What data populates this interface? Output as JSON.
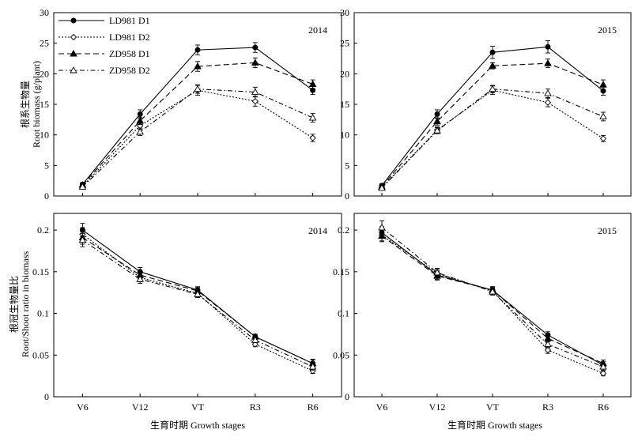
{
  "figure": {
    "x_title": "生育时期 Growth stages",
    "y_title_top_cn": "根系生物量",
    "y_title_top_en": "Root biomass (g/plant)",
    "y_title_bottom_cn": "根冠生物量比",
    "y_title_bottom_en": "Root/Shoot ratio in biomass"
  },
  "legend": [
    {
      "name": "LD981 D1",
      "marker": "filled-circle",
      "dash": "solid"
    },
    {
      "name": "LD981 D2",
      "marker": "open-diamond",
      "dash": "dotted"
    },
    {
      "name": "ZD958 D1",
      "marker": "filled-triangle",
      "dash": "dashed"
    },
    {
      "name": "ZD958 D2",
      "marker": "open-triangle",
      "dash": "dash-dot"
    }
  ],
  "chart_data": [
    {
      "type": "line",
      "year": "2014",
      "categories": [
        "V6",
        "V12",
        "VT",
        "R3",
        "R6"
      ],
      "ylim": [
        0,
        30
      ],
      "yticks": [
        "0",
        "5",
        "10",
        "15",
        "20",
        "25",
        "30"
      ],
      "ytick_values": [
        0,
        5,
        10,
        15,
        20,
        25,
        30
      ],
      "series": [
        {
          "name": "LD981 D1",
          "values": [
            1.9,
            13.4,
            23.9,
            24.3,
            17.3
          ],
          "errors": [
            0.3,
            0.7,
            0.8,
            0.8,
            0.7
          ]
        },
        {
          "name": "LD981 D2",
          "values": [
            1.6,
            11.5,
            17.3,
            15.5,
            9.5
          ],
          "errors": [
            0.3,
            0.6,
            0.8,
            0.8,
            0.6
          ]
        },
        {
          "name": "ZD958 D1",
          "values": [
            1.8,
            12.3,
            21.2,
            21.8,
            18.3
          ],
          "errors": [
            0.3,
            0.6,
            0.8,
            0.8,
            0.7
          ]
        },
        {
          "name": "ZD958 D2",
          "values": [
            1.5,
            10.5,
            17.5,
            17.0,
            12.8
          ],
          "errors": [
            0.3,
            0.6,
            0.7,
            0.8,
            0.7
          ]
        }
      ]
    },
    {
      "type": "line",
      "year": "2015",
      "categories": [
        "V6",
        "V12",
        "VT",
        "R3",
        "R6"
      ],
      "ylim": [
        0,
        30
      ],
      "yticks": [
        "0",
        "5",
        "10",
        "15",
        "20",
        "25",
        "30"
      ],
      "ytick_values": [
        0,
        5,
        10,
        15,
        20,
        25,
        30
      ],
      "series": [
        {
          "name": "LD981 D1",
          "values": [
            1.7,
            13.4,
            23.5,
            24.4,
            17.2
          ],
          "errors": [
            0.3,
            0.7,
            1.0,
            1.0,
            0.7
          ]
        },
        {
          "name": "LD981 D2",
          "values": [
            1.4,
            10.8,
            17.3,
            15.3,
            9.4
          ],
          "errors": [
            0.3,
            0.5,
            0.7,
            0.7,
            0.5
          ]
        },
        {
          "name": "ZD958 D1",
          "values": [
            1.5,
            12.2,
            21.3,
            21.7,
            18.2
          ],
          "errors": [
            0.3,
            0.6,
            0.5,
            0.7,
            0.8
          ]
        },
        {
          "name": "ZD958 D2",
          "values": [
            1.3,
            10.7,
            17.5,
            16.8,
            13.0
          ],
          "errors": [
            0.3,
            0.5,
            0.6,
            0.7,
            0.7
          ]
        }
      ]
    },
    {
      "type": "line",
      "year": "2014",
      "categories": [
        "V6",
        "V12",
        "VT",
        "R3",
        "R6"
      ],
      "ylim": [
        0,
        0.22
      ],
      "yticks": [
        "0",
        "0.05",
        "0.1",
        "0.15",
        "0.2"
      ],
      "ytick_values": [
        0,
        0.05,
        0.1,
        0.15,
        0.2
      ],
      "series": [
        {
          "name": "LD981 D1",
          "values": [
            0.2,
            0.15,
            0.128,
            0.072,
            0.04
          ],
          "errors": [
            0.008,
            0.005,
            0.004,
            0.003,
            0.005
          ]
        },
        {
          "name": "LD981 D2",
          "values": [
            0.195,
            0.143,
            0.124,
            0.063,
            0.031
          ],
          "errors": [
            0.008,
            0.005,
            0.004,
            0.003,
            0.003
          ]
        },
        {
          "name": "ZD958 D1",
          "values": [
            0.191,
            0.146,
            0.127,
            0.072,
            0.04
          ],
          "errors": [
            0.008,
            0.005,
            0.004,
            0.003,
            0.004
          ]
        },
        {
          "name": "ZD958 D2",
          "values": [
            0.188,
            0.141,
            0.123,
            0.068,
            0.036
          ],
          "errors": [
            0.008,
            0.005,
            0.004,
            0.003,
            0.004
          ]
        }
      ]
    },
    {
      "type": "line",
      "year": "2015",
      "categories": [
        "V6",
        "V12",
        "VT",
        "R3",
        "R6"
      ],
      "ylim": [
        0,
        0.22
      ],
      "yticks": [
        "0",
        "0.05",
        "0.1",
        "0.15",
        "0.2"
      ],
      "ytick_values": [
        0,
        0.05,
        0.1,
        0.15,
        0.2
      ],
      "series": [
        {
          "name": "LD981 D1",
          "values": [
            0.197,
            0.146,
            0.128,
            0.074,
            0.038
          ],
          "errors": [
            0.007,
            0.005,
            0.004,
            0.004,
            0.004
          ]
        },
        {
          "name": "LD981 D2",
          "values": [
            0.194,
            0.148,
            0.127,
            0.056,
            0.028
          ],
          "errors": [
            0.007,
            0.005,
            0.004,
            0.004,
            0.003
          ]
        },
        {
          "name": "ZD958 D1",
          "values": [
            0.193,
            0.145,
            0.128,
            0.07,
            0.04
          ],
          "errors": [
            0.007,
            0.005,
            0.004,
            0.004,
            0.004
          ]
        },
        {
          "name": "ZD958 D2",
          "values": [
            0.203,
            0.149,
            0.126,
            0.063,
            0.036
          ],
          "errors": [
            0.008,
            0.005,
            0.004,
            0.004,
            0.004
          ]
        }
      ]
    }
  ]
}
